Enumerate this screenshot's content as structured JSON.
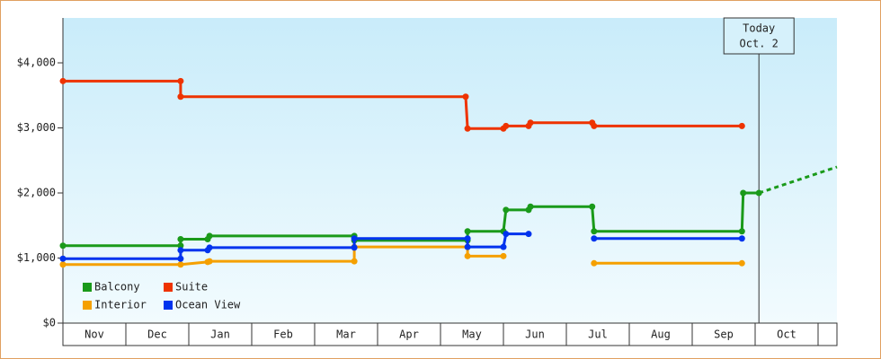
{
  "chart_data": {
    "type": "step-line",
    "xlim": [
      0,
      12.3
    ],
    "xticks": [
      {
        "value": 0.5,
        "label": "Nov"
      },
      {
        "value": 1.5,
        "label": "Dec"
      },
      {
        "value": 2.5,
        "label": "Jan"
      },
      {
        "value": 3.5,
        "label": "Feb"
      },
      {
        "value": 4.5,
        "label": "Mar"
      },
      {
        "value": 5.5,
        "label": "Apr"
      },
      {
        "value": 6.5,
        "label": "May"
      },
      {
        "value": 7.5,
        "label": "Jun"
      },
      {
        "value": 8.5,
        "label": "Jul"
      },
      {
        "value": 9.5,
        "label": "Aug"
      },
      {
        "value": 10.5,
        "label": "Sep"
      },
      {
        "value": 11.5,
        "label": "Oct"
      }
    ],
    "ylim": [
      0,
      4690
    ],
    "yticks": [
      {
        "value": 0,
        "label": "$0"
      },
      {
        "value": 1000,
        "label": "$1,000"
      },
      {
        "value": 2000,
        "label": "$2,000"
      },
      {
        "value": 3000,
        "label": "$3,000"
      },
      {
        "value": 4000,
        "label": "$4,000"
      }
    ],
    "series": [
      {
        "name": "Balcony",
        "color": "#1a9a1a",
        "x": [
          0,
          1.87,
          1.87,
          2.3,
          2.33,
          4.63,
          4.63,
          6.43,
          6.43,
          7.0,
          7.04,
          7.4,
          7.43,
          8.41,
          8.44,
          10.79,
          10.81,
          11.06
        ],
        "values": [
          1190,
          1190,
          1290,
          1290,
          1340,
          1340,
          1270,
          1270,
          1410,
          1410,
          1740,
          1740,
          1790,
          1790,
          1410,
          1410,
          2000,
          2000
        ]
      },
      {
        "name": "Suite",
        "color": "#ee3300",
        "x": [
          0,
          1.87,
          1.87,
          6.4,
          6.43,
          7.0,
          7.04,
          7.4,
          7.43,
          8.41,
          8.44,
          10.79
        ],
        "values": [
          3720,
          3720,
          3480,
          3480,
          2990,
          2990,
          3030,
          3030,
          3080,
          3080,
          3030,
          3030
        ]
      },
      {
        "name": "Interior",
        "color": "#f5a000",
        "x": [
          0,
          1.87,
          2.3,
          2.33,
          4.63,
          4.63,
          6.43,
          6.43,
          7.0,
          null,
          8.44,
          10.79
        ],
        "values": [
          900,
          900,
          940,
          950,
          950,
          1170,
          1170,
          1030,
          1030,
          null,
          920,
          920
        ]
      },
      {
        "name": "Ocean View",
        "color": "#0033ee",
        "x": [
          0,
          1.87,
          1.87,
          2.3,
          2.33,
          4.63,
          4.63,
          6.43,
          6.43,
          7.0,
          7.04,
          7.4,
          null,
          8.44,
          10.79
        ],
        "values": [
          990,
          990,
          1120,
          1120,
          1160,
          1160,
          1300,
          1300,
          1170,
          1170,
          1370,
          1370,
          null,
          1300,
          1300
        ]
      }
    ],
    "projection": {
      "color": "#1a9a1a",
      "x": [
        11.06,
        12.3
      ],
      "values": [
        2000,
        2400
      ]
    },
    "annotation": {
      "x": 11.06,
      "lines": [
        "Today",
        "Oct. 2"
      ]
    },
    "legend": "bottom-left"
  }
}
